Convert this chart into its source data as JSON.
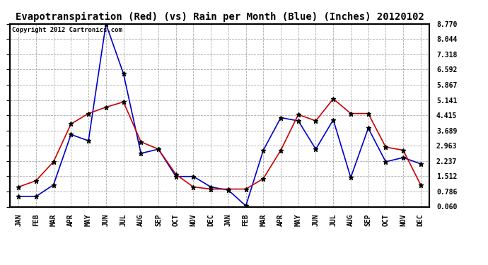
{
  "title": "Evapotranspiration (Red) (vs) Rain per Month (Blue) (Inches) 20120102",
  "copyright": "Copyright 2012 Cartronics.com",
  "months": [
    "JAN",
    "FEB",
    "MAR",
    "APR",
    "MAY",
    "JUN",
    "JUL",
    "AUG",
    "SEP",
    "OCT",
    "NOV",
    "DEC",
    "JAN",
    "FEB",
    "MAR",
    "APR",
    "MAY",
    "JUN",
    "JUL",
    "AUG",
    "SEP",
    "OCT",
    "NOV",
    "DEC"
  ],
  "blue_rain": [
    0.55,
    0.55,
    1.1,
    3.5,
    3.2,
    8.77,
    6.4,
    2.6,
    2.8,
    1.5,
    1.5,
    1.0,
    0.85,
    0.1,
    2.75,
    4.3,
    4.15,
    2.8,
    4.2,
    1.45,
    3.8,
    2.2,
    2.4,
    2.1
  ],
  "red_et": [
    1.0,
    1.3,
    2.2,
    4.0,
    4.5,
    4.8,
    5.05,
    3.15,
    2.8,
    1.6,
    1.0,
    0.9,
    0.9,
    0.9,
    1.4,
    2.75,
    4.45,
    4.15,
    5.2,
    4.5,
    4.5,
    2.9,
    2.75,
    1.1
  ],
  "ylim": [
    0.06,
    8.77
  ],
  "yticks": [
    0.06,
    0.786,
    1.512,
    2.237,
    2.963,
    3.689,
    4.415,
    5.141,
    5.867,
    6.592,
    7.318,
    8.044,
    8.77
  ],
  "blue_color": "#0000CC",
  "red_color": "#CC0000",
  "bg_color": "#FFFFFF",
  "grid_color": "#AAAAAA",
  "title_fontsize": 10,
  "copyright_fontsize": 6.5,
  "tick_fontsize": 7,
  "xlabel_fontsize": 7
}
